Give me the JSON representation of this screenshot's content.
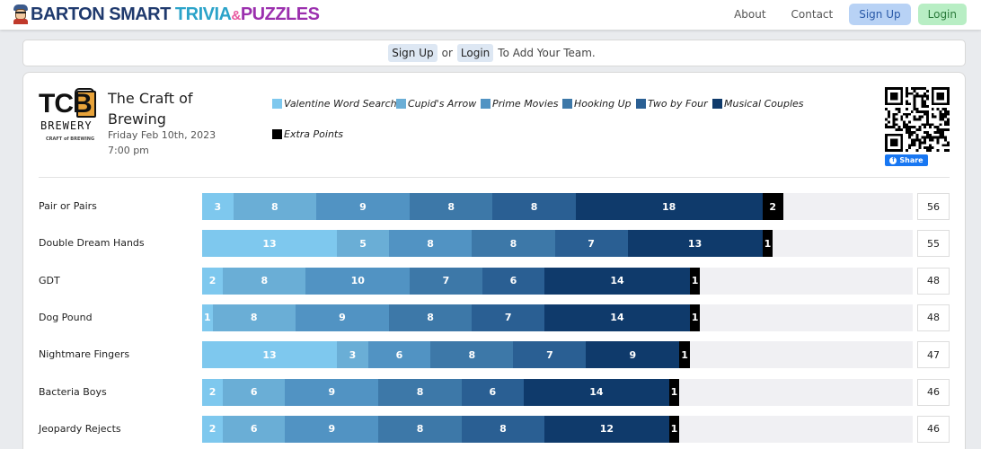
{
  "nav": {
    "brand": {
      "part1": "BARTON SMART",
      "part2": "TRIVIA",
      "amp": "&",
      "part3": "PUZZLES"
    },
    "about": "About",
    "contact": "Contact",
    "signup": "Sign Up",
    "login": "Login"
  },
  "notice": {
    "signup": "Sign Up",
    "or": "or",
    "login": "Login",
    "text": "To Add Your Team."
  },
  "event": {
    "logo_text": "TCB",
    "logo_sub": "BREWERY",
    "logo_tag": "CRAFT of BREWING",
    "title": "The Craft of Brewing",
    "date": "Friday Feb 10th, 2023",
    "time": "7:00 pm",
    "share_label": "Share"
  },
  "colors": [
    "#7ec8ee",
    "#6aaed6",
    "#5193c3",
    "#3d78a8",
    "#2a5f93",
    "#0f3a6b",
    "#000000"
  ],
  "rounds": [
    "Valentine Word Search",
    "Cupid's Arrow",
    "Prime Movies",
    "Hooking Up",
    "Two by Four",
    "Musical Couples",
    "Extra Points"
  ],
  "teams": [
    {
      "name": "Pair or Pairs",
      "scores": [
        3,
        8,
        9,
        8,
        8,
        18,
        2
      ],
      "total": 56
    },
    {
      "name": "Double Dream Hands",
      "scores": [
        13,
        5,
        8,
        8,
        7,
        13,
        1
      ],
      "total": 55
    },
    {
      "name": "GDT",
      "scores": [
        2,
        8,
        10,
        7,
        6,
        14,
        1
      ],
      "total": 48
    },
    {
      "name": "Dog Pound",
      "scores": [
        1,
        8,
        9,
        8,
        7,
        14,
        1
      ],
      "total": 48
    },
    {
      "name": "Nightmare Fingers",
      "scores": [
        13,
        3,
        6,
        8,
        7,
        9,
        1
      ],
      "total": 47
    },
    {
      "name": "Bacteria Boys",
      "scores": [
        2,
        6,
        9,
        8,
        6,
        14,
        1
      ],
      "total": 46
    },
    {
      "name": "Jeopardy Rejects",
      "scores": [
        2,
        6,
        9,
        8,
        8,
        12,
        1
      ],
      "total": 46
    }
  ]
}
